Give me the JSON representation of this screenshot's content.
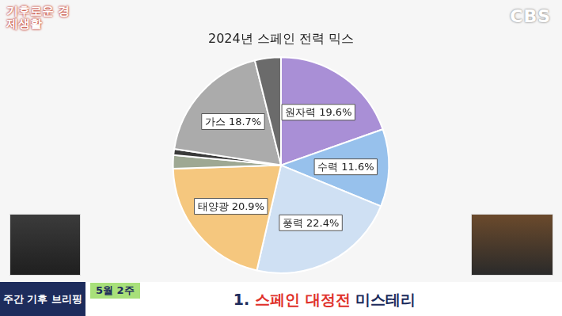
{
  "chart_data": {
    "type": "pie",
    "title": "2024년 스페인 전력 믹스",
    "categories": [
      "원자력",
      "수력",
      "풍력",
      "태양광",
      null,
      null,
      "가스",
      null
    ],
    "values": [
      19.6,
      11.6,
      22.4,
      20.9,
      2.0,
      0.9,
      18.7,
      3.9
    ],
    "value_labels": [
      "19.6%",
      "11.6%",
      "22.4%",
      "20.9%",
      null,
      null,
      "18.7%",
      null
    ],
    "colors": [
      "#a98fd6",
      "#97c1ec",
      "#cfe0f3",
      "#f5c77e",
      "#9ea893",
      "#3a3a3a",
      "#ababab",
      "#6b6b6b"
    ],
    "data_labels": true
  },
  "screen": {
    "program": "기후로운 경제생활",
    "logo": "CBS",
    "segment": "주간 기후 브리핑",
    "week": "5월 2주",
    "headline": [
      "1. ",
      "스페인 대정전",
      " 미스테리"
    ]
  }
}
